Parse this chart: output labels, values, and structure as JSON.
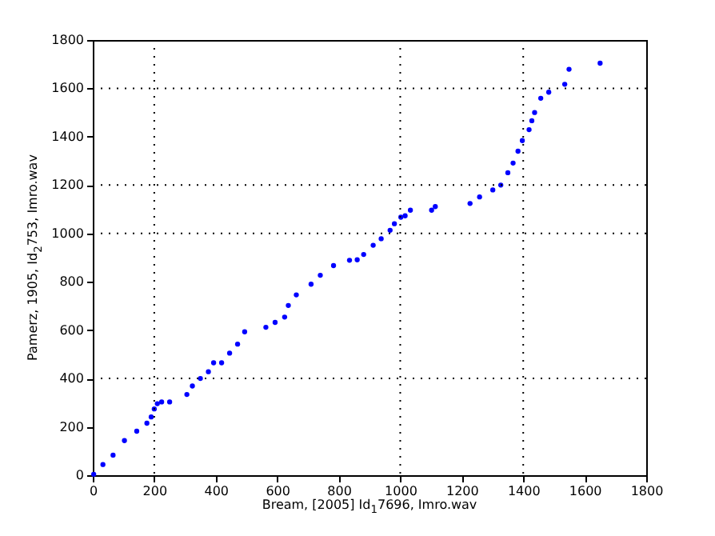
{
  "chart_data": {
    "type": "scatter",
    "xlabel": "Bream, [2005] Id$_{1}$7696, Imro.wav",
    "ylabel": "Pamerz, 1905, Id$_{2}$753, Imro.wav",
    "x": [
      3,
      33,
      66,
      103,
      143,
      176,
      190,
      200,
      210,
      224,
      250,
      306,
      324,
      350,
      376,
      393,
      419,
      445,
      471,
      494,
      563,
      593,
      624,
      636,
      662,
      710,
      740,
      783,
      835,
      860,
      881,
      912,
      938,
      967,
      981,
      1002,
      1016,
      1033,
      1102,
      1114,
      1227,
      1258,
      1301,
      1327,
      1350,
      1367,
      1383,
      1397,
      1419,
      1428,
      1437,
      1457,
      1483,
      1535,
      1549,
      1650
    ],
    "series": [
      {
        "color": "#0000ff",
        "values": [
          4,
          44,
          83,
          143,
          182,
          215,
          241,
          274,
          296,
          303,
          303,
          334,
          369,
          400,
          428,
          465,
          465,
          505,
          542,
          593,
          612,
          632,
          654,
          702,
          746,
          790,
          827,
          867,
          889,
          891,
          913,
          951,
          978,
          1013,
          1040,
          1067,
          1073,
          1096,
          1096,
          1111,
          1124,
          1151,
          1180,
          1200,
          1251,
          1291,
          1340,
          1384,
          1429,
          1466,
          1500,
          1559,
          1584,
          1617,
          1679,
          1704
        ]
      }
    ],
    "marker": "circle",
    "xlim": [
      0,
      1800
    ],
    "xticks": [
      0,
      200,
      400,
      600,
      800,
      1000,
      1200,
      1400,
      1600,
      1800
    ],
    "ylim": [
      0,
      1800
    ],
    "yticks": [
      0,
      200,
      400,
      600,
      800,
      1000,
      1200,
      1400,
      1600,
      1800
    ],
    "ref_lines": [
      {
        "axis": "x",
        "value": 200,
        "color": "#000000",
        "line_style": "dotted"
      },
      {
        "axis": "x",
        "value": 1000,
        "color": "#000000",
        "line_style": "dotted"
      },
      {
        "axis": "x",
        "value": 1400,
        "color": "#000000",
        "line_style": "dotted"
      },
      {
        "axis": "y",
        "value": 400,
        "color": "#000000",
        "line_style": "dotted"
      },
      {
        "axis": "y",
        "value": 1000,
        "color": "#000000",
        "line_style": "dotted"
      },
      {
        "axis": "y",
        "value": 1200,
        "color": "#000000",
        "line_style": "dotted"
      },
      {
        "axis": "y",
        "value": 1600,
        "color": "#000000",
        "line_style": "dotted"
      }
    ]
  }
}
